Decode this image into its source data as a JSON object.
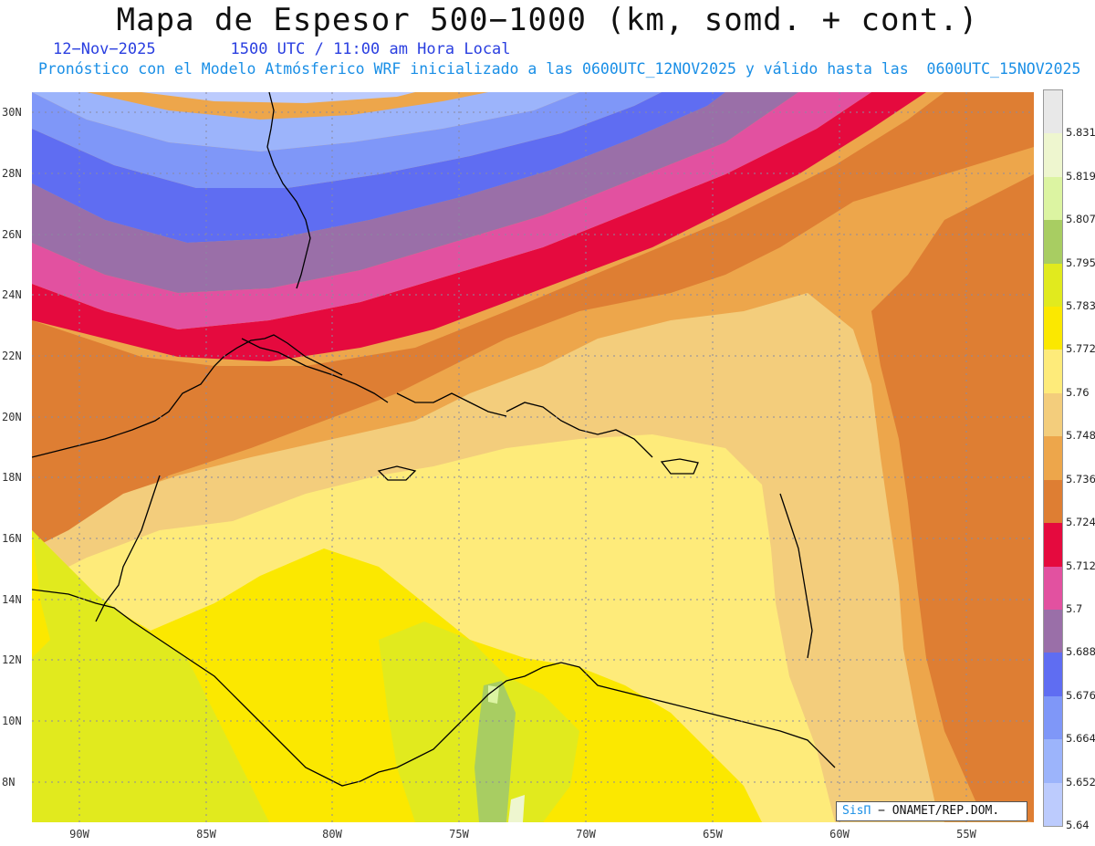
{
  "header": {
    "title": "Mapa de Espesor 500−1000 (km, somd. + cont.)",
    "date": "12−Nov−2025",
    "time": "1500 UTC / 11:00 am Hora Local",
    "description": "Pronóstico con el Modelo Atmósferico WRF inicializado a las 0600UTC_12NOV2025 y válido hasta las  0600UTC_15NOV2025"
  },
  "map": {
    "lat_labels": [
      "30N",
      "28N",
      "26N",
      "24N",
      "22N",
      "20N",
      "18N",
      "16N",
      "14N",
      "12N",
      "10N",
      "8N"
    ],
    "lon_labels": [
      "90W",
      "85W",
      "80W",
      "75W",
      "70W",
      "65W",
      "60W",
      "55W"
    ],
    "grid": "dotted"
  },
  "colorbar": {
    "labels": [
      "5.831",
      "5.819",
      "5.807",
      "5.795",
      "5.783",
      "5.772",
      "5.76",
      "5.748",
      "5.736",
      "5.724",
      "5.712",
      "5.7",
      "5.688",
      "5.676",
      "5.664",
      "5.652",
      "5.64"
    ],
    "colors": [
      "#e8e8e8",
      "#eef6cf",
      "#dcf4a2",
      "#a8cd62",
      "#e1ea1e",
      "#fbe800",
      "#feeb7a",
      "#f3cd7c",
      "#eda64b",
      "#de7e33",
      "#e50a3e",
      "#e251a0",
      "#9a6fa8",
      "#5f6df2",
      "#7f97f8",
      "#9cb4fb",
      "#bccbfd"
    ]
  },
  "credit": {
    "logo": "SisΠ",
    "text": "− ONAMET/REP.DOM."
  }
}
